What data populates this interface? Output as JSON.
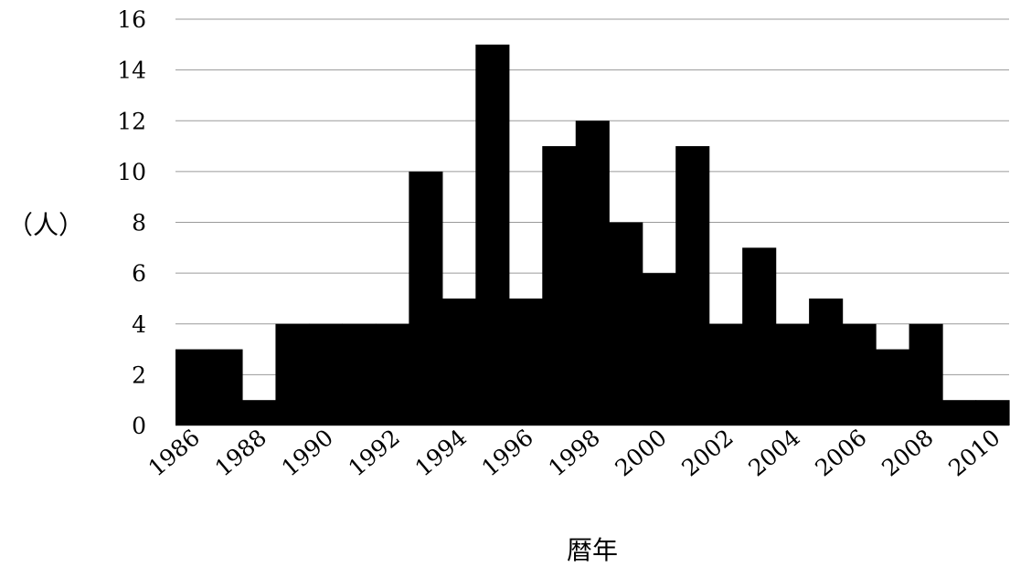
{
  "chart_data": {
    "type": "bar",
    "title": "",
    "xlabel": "暦年",
    "ylabel": "（人）",
    "ylim": [
      0,
      16
    ],
    "yticks": [
      0,
      2,
      4,
      6,
      8,
      10,
      12,
      14,
      16
    ],
    "xtick_labels": [
      "1986",
      "1988",
      "1990",
      "1992",
      "1994",
      "1996",
      "1998",
      "2000",
      "2002",
      "2004",
      "2006",
      "2008",
      "2010"
    ],
    "categories": [
      1986,
      1987,
      1988,
      1989,
      1990,
      1991,
      1992,
      1993,
      1994,
      1995,
      1996,
      1997,
      1998,
      1999,
      2000,
      2001,
      2002,
      2003,
      2004,
      2005,
      2006,
      2007,
      2008,
      2009,
      2010
    ],
    "values": [
      3,
      3,
      1,
      4,
      4,
      4,
      4,
      10,
      5,
      15,
      5,
      11,
      12,
      8,
      6,
      11,
      4,
      7,
      4,
      5,
      4,
      3,
      4,
      1,
      1
    ],
    "grid": true,
    "bar_color": "#000000",
    "grid_color": "#9a9a9a"
  }
}
